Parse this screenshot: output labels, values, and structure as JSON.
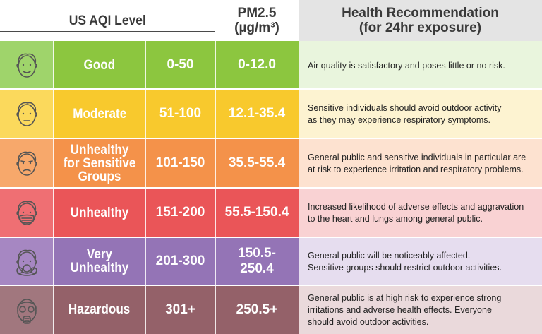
{
  "header": {
    "aqi_title": "US AQI Level",
    "pm_title_line1": "PM2.5",
    "pm_title_line2": "(µg/m³)",
    "health_title_line1": "Health Recommendation",
    "health_title_line2": "(for 24hr exposure)"
  },
  "rows": [
    {
      "level_lines": [
        "Good"
      ],
      "aqi_range": "0-50",
      "pm_lines": [
        "0-12.0"
      ],
      "recommendation_lines": [
        "Air quality is satisfactory and poses little or no risk."
      ],
      "icon": "smiling-face-icon",
      "colors": {
        "icon_bg": "#9fd46b",
        "main": "#8cc63f",
        "text_bg": "#e9f5dd"
      }
    },
    {
      "level_lines": [
        "Moderate"
      ],
      "aqi_range": "51-100",
      "pm_lines": [
        "12.1-35.4"
      ],
      "recommendation_lines": [
        "Sensitive individuals should avoid outdoor activity",
        "as they may experience respiratory symptoms."
      ],
      "icon": "neutral-face-icon",
      "colors": {
        "icon_bg": "#fbd95c",
        "main": "#f8c92d",
        "text_bg": "#fdf3d1"
      }
    },
    {
      "level_lines": [
        "Unhealthy",
        "for Sensitive",
        "Groups"
      ],
      "aqi_range": "101-150",
      "pm_lines": [
        "35.5-55.4"
      ],
      "recommendation_lines": [
        "General public and sensitive individuals in particular are",
        "at risk to experience irritation and respiratory problems."
      ],
      "icon": "unwell-face-icon",
      "colors": {
        "icon_bg": "#f7a86b",
        "main": "#f4924a",
        "text_bg": "#fde2d0"
      }
    },
    {
      "level_lines": [
        "Unhealthy"
      ],
      "aqi_range": "151-200",
      "pm_lines": [
        "55.5-150.4"
      ],
      "recommendation_lines": [
        "Increased likelihood of adverse effects and aggravation",
        "to the heart and lungs among general public."
      ],
      "icon": "face-mask-icon",
      "colors": {
        "icon_bg": "#ef6f73",
        "main": "#ea5558",
        "text_bg": "#f9d2d3"
      }
    },
    {
      "level_lines": [
        "Very",
        "Unhealthy"
      ],
      "aqi_range": "201-300",
      "pm_lines": [
        "150.5-",
        "250.4"
      ],
      "recommendation_lines": [
        "General public will be noticeably affected.",
        "Sensitive groups should restrict outdoor activities."
      ],
      "icon": "respirator-face-icon",
      "colors": {
        "icon_bg": "#a687c2",
        "main": "#9474b6",
        "text_bg": "#e6ddef"
      }
    },
    {
      "level_lines": [
        "Hazardous"
      ],
      "aqi_range": "301+",
      "pm_lines": [
        "250.5+"
      ],
      "recommendation_lines": [
        "General public is at high risk to experience strong",
        "irritations and adverse health effects. Everyone",
        "should avoid outdoor activities."
      ],
      "icon": "gas-mask-icon",
      "colors": {
        "icon_bg": "#a1777e",
        "main": "#946169",
        "text_bg": "#ead9db"
      }
    }
  ]
}
